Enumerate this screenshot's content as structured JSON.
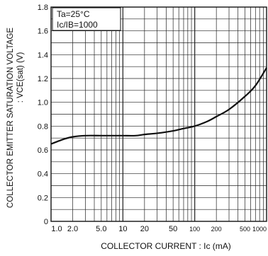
{
  "chart_data": {
    "type": "line",
    "x_scale": "log",
    "xlim": [
      1,
      1000
    ],
    "ylim": [
      0,
      1.8
    ],
    "xlabel": "COLLECTOR CURRENT : Ic (mA)",
    "ylabel_line1": "COLLECTOR EMITTER SATURATION VOLTAGE",
    "ylabel_line2": ": VCE(sat) (V)",
    "x_ticks": [
      {
        "v": 1,
        "label": "1.0"
      },
      {
        "v": 2,
        "label": "2.0"
      },
      {
        "v": 5,
        "label": "5.0"
      },
      {
        "v": 10,
        "label": "10"
      },
      {
        "v": 20,
        "label": "20"
      },
      {
        "v": 50,
        "label": "50"
      },
      {
        "v": 100,
        "label": "100"
      },
      {
        "v": 200,
        "label": "200"
      },
      {
        "v": 500,
        "label": "500"
      },
      {
        "v": 1000,
        "label": "1000"
      }
    ],
    "y_ticks": [
      {
        "v": 0,
        "label": "0"
      },
      {
        "v": 0.2,
        "label": "0.2"
      },
      {
        "v": 0.4,
        "label": "0.4"
      },
      {
        "v": 0.6,
        "label": "0.6"
      },
      {
        "v": 0.8,
        "label": "0.8"
      },
      {
        "v": 1.0,
        "label": "1.0"
      },
      {
        "v": 1.2,
        "label": "1.2"
      },
      {
        "v": 1.4,
        "label": "1.4"
      },
      {
        "v": 1.6,
        "label": "1.6"
      },
      {
        "v": 1.8,
        "label": "1.8"
      }
    ],
    "grid": true,
    "annotations": [
      "Ta=25°C",
      "Ic/IB=1000"
    ],
    "series": [
      {
        "x": [
          1,
          1.5,
          2,
          3,
          5,
          7,
          10,
          15,
          20,
          30,
          50,
          70,
          100,
          150,
          200,
          300,
          500,
          700,
          1000
        ],
        "y": [
          0.65,
          0.69,
          0.71,
          0.72,
          0.72,
          0.72,
          0.72,
          0.72,
          0.73,
          0.74,
          0.76,
          0.78,
          0.8,
          0.84,
          0.88,
          0.94,
          1.05,
          1.14,
          1.29
        ]
      }
    ]
  }
}
